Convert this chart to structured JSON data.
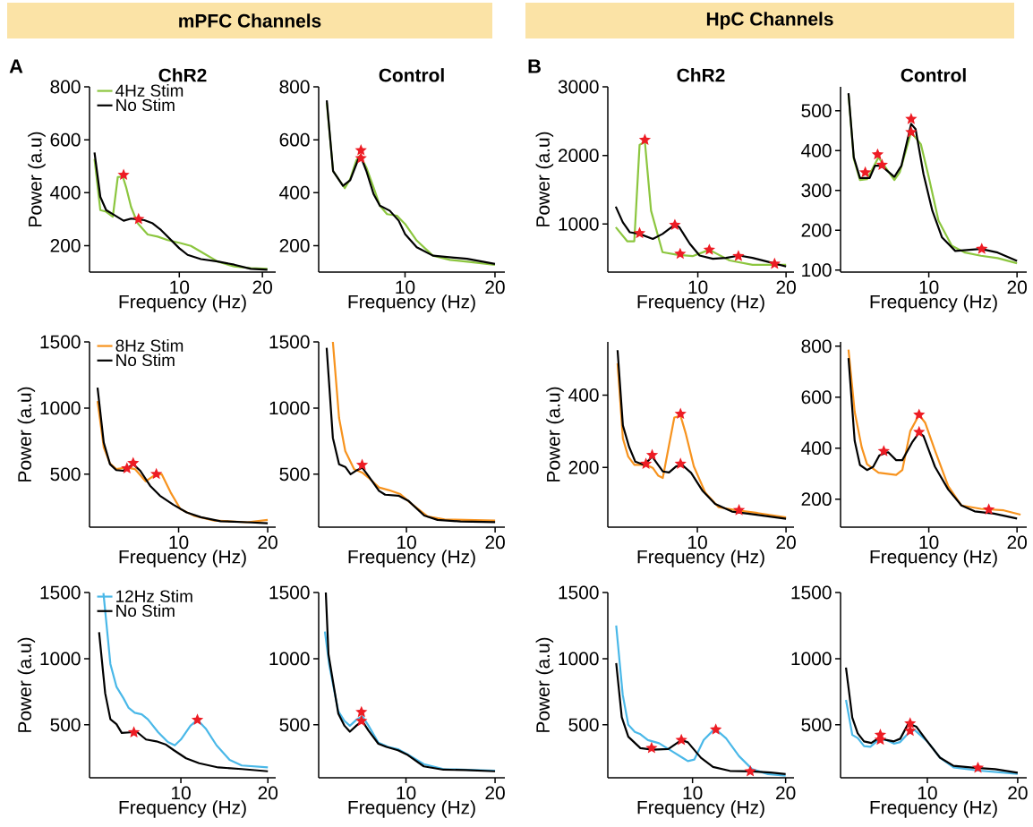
{
  "chart_data": [
    {
      "type": "line",
      "title": "ChR2",
      "xlabel": "Frequency (Hz)",
      "ylabel": "Power (a.u)",
      "xlim": [
        -0.8,
        21.6
      ],
      "ylim": [
        100,
        800
      ],
      "xticks": [
        10,
        20
      ],
      "yticks": [
        200,
        400,
        600,
        800
      ],
      "legend": "top left",
      "annotations": [
        "mPFC Channels",
        "A"
      ],
      "series": [
        {
          "name": "4Hz Stim",
          "color": "#8cc63f",
          "x": [
            -0.2,
            0.5,
            1.2,
            2,
            2.6,
            3.2,
            3.6,
            4.2,
            5,
            6.2,
            7.4,
            8.6,
            10.2,
            11.4,
            12.6,
            14.6,
            16.6,
            18.6,
            20.6
          ],
          "values": [
            527,
            334,
            328,
            309,
            459,
            461,
            421,
            346,
            284,
            242,
            234,
            221,
            209,
            199,
            177,
            140,
            121,
            115,
            112
          ]
        },
        {
          "name": "No Stim",
          "color": "#000000",
          "x": [
            -0.2,
            0.5,
            1.2,
            2.2,
            3.3,
            4.2,
            5.8,
            6.8,
            7.8,
            10,
            11,
            12.6,
            14.6,
            16.6,
            18.6,
            20.6
          ],
          "values": [
            552,
            384,
            334,
            315,
            294,
            302,
            296,
            284,
            259,
            190,
            165,
            149,
            140,
            128,
            112,
            109
          ]
        },
        {
          "type": "scatter",
          "marker": "star",
          "color": "#ed1c24",
          "x": [
            3.3,
            5.1
          ],
          "values": [
            467,
            300
          ]
        }
      ]
    },
    {
      "type": "line",
      "title": "Control",
      "xlabel": "Frequency (Hz)",
      "xlim": [
        0.4,
        21.1
      ],
      "ylim": [
        100,
        800
      ],
      "xticks": [
        10,
        20
      ],
      "yticks": [
        200,
        400,
        600,
        800
      ],
      "series": [
        {
          "color": "#8cc63f",
          "x": [
            1.3,
            2,
            3.3,
            3.9,
            4.6,
            5,
            5.7,
            6.5,
            7.2,
            8,
            9.1,
            10,
            11.3,
            13.1,
            15,
            17.6,
            20
          ],
          "values": [
            740,
            482,
            417,
            451,
            523,
            541,
            495,
            420,
            351,
            319,
            313,
            282,
            219,
            162,
            146,
            137,
            127
          ]
        },
        {
          "color": "#000000",
          "x": [
            1.3,
            2,
            3.1,
            3.9,
            4.8,
            5.2,
            5.7,
            6.5,
            7.2,
            8.3,
            9.3,
            10,
            11.3,
            13.1,
            16.9,
            20
          ],
          "values": [
            749,
            482,
            426,
            447,
            526,
            526,
            482,
            395,
            351,
            332,
            294,
            244,
            194,
            162,
            150,
            131
          ]
        },
        {
          "type": "scatter",
          "marker": "star",
          "color": "#ed1c24",
          "x": [
            5.1,
            5.1
          ],
          "values": [
            560,
            530
          ]
        }
      ]
    },
    {
      "type": "line",
      "title": "ChR2",
      "xlabel": "Frequency (Hz)",
      "ylabel": "Power (a.u)",
      "xlim": [
        -0.2,
        20.9
      ],
      "ylim": [
        300,
        3000
      ],
      "xticks": [
        10,
        20
      ],
      "yticks": [
        1000,
        2000,
        3000
      ],
      "annotations": [
        "HpC Channels",
        "B"
      ],
      "series": [
        {
          "color": "#8cc63f",
          "x": [
            0.7,
            2,
            2.8,
            3.4,
            4,
            4.7,
            6,
            7.5,
            9.4,
            11.3,
            13.6,
            16.2,
            18.1,
            20
          ],
          "values": [
            953,
            749,
            749,
            2153,
            2201,
            1195,
            590,
            556,
            532,
            624,
            469,
            406,
            406,
            406
          ]
        },
        {
          "color": "#000000",
          "x": [
            0.7,
            1.5,
            2.3,
            3.4,
            4.9,
            6,
            7.4,
            7.9,
            9.1,
            10.2,
            11.7,
            13.2,
            14.7,
            16.2,
            18.1,
            20
          ],
          "values": [
            1253,
            1025,
            880,
            856,
            783,
            856,
            991,
            953,
            711,
            541,
            493,
            507,
            541,
            507,
            444,
            382
          ]
        },
        {
          "type": "scatter",
          "marker": "star",
          "color": "#ed1c24",
          "x": [
            4,
            3.4,
            7.4,
            8,
            11.3,
            14.6,
            18.7
          ],
          "values": [
            2226,
            866,
            986,
            565,
            624,
            532,
            420
          ]
        }
      ]
    },
    {
      "type": "line",
      "title": "Control",
      "xlabel": "Frequency (Hz)",
      "xlim": [
        0,
        21.1
      ],
      "ylim": [
        95,
        560
      ],
      "xticks": [
        10,
        20
      ],
      "yticks": [
        100,
        200,
        300,
        400,
        500
      ],
      "series": [
        {
          "color": "#8cc63f",
          "x": [
            0.9,
            1.5,
            2.2,
            3,
            4.3,
            6.1,
            6.7,
            8,
            9.1,
            10,
            11.1,
            12.6,
            14.1,
            15.9,
            17.8,
            20
          ],
          "values": [
            542,
            379,
            326,
            328,
            383,
            326,
            345,
            446,
            416,
            333,
            224,
            161,
            144,
            136,
            130,
            117
          ]
        },
        {
          "color": "#000000",
          "x": [
            0.9,
            1.5,
            2.2,
            3.3,
            3.9,
            4.6,
            6.1,
            6.9,
            8,
            8.5,
            9.4,
            10.4,
            11.5,
            13,
            15.9,
            17.8,
            20
          ],
          "values": [
            544,
            383,
            331,
            331,
            362,
            362,
            334,
            362,
            467,
            454,
            341,
            249,
            182,
            148,
            153,
            144,
            123
          ]
        },
        {
          "type": "scatter",
          "marker": "star",
          "color": "#ed1c24",
          "x": [
            2.8,
            4.2,
            4.7,
            8,
            8,
            16
          ],
          "values": [
            345,
            390,
            364,
            479,
            446,
            153
          ]
        }
      ]
    },
    {
      "type": "line",
      "xlabel": "Frequency (Hz)",
      "ylabel": "Power (a.u)",
      "xlim": [
        0,
        20.9
      ],
      "ylim": [
        100,
        1500
      ],
      "xticks": [
        10,
        20
      ],
      "yticks": [
        500,
        1000,
        1500
      ],
      "legend": "top left",
      "series": [
        {
          "name": "8Hz Stim",
          "color": "#f7931e",
          "x": [
            0.9,
            1.6,
            2.3,
            3,
            4.2,
            5.1,
            6.3,
            7.2,
            8.1,
            9.1,
            10.2,
            11.7,
            14,
            17.7,
            20
          ],
          "values": [
            1053,
            702,
            581,
            539,
            551,
            539,
            446,
            488,
            501,
            363,
            237,
            187,
            150,
            137,
            155
          ]
        },
        {
          "name": "No Stim",
          "color": "#000000",
          "x": [
            0.9,
            1.6,
            2.3,
            3,
            3.8,
            4.9,
            5.7,
            6.8,
            7.9,
            9.4,
            10.9,
            12.5,
            14.7,
            17.7,
            20
          ],
          "values": [
            1154,
            739,
            576,
            531,
            526,
            576,
            526,
            413,
            338,
            270,
            212,
            175,
            145,
            137,
            130
          ]
        },
        {
          "type": "scatter",
          "marker": "star",
          "color": "#ed1c24",
          "x": [
            4.2,
            4.9,
            7.5
          ],
          "values": [
            544,
            584,
            501
          ]
        }
      ]
    },
    {
      "type": "line",
      "xlabel": "Frequency (Hz)",
      "xlim": [
        0.1,
        21.1
      ],
      "ylim": [
        100,
        1500
      ],
      "xticks": [
        10,
        20
      ],
      "yticks": [
        500,
        1000,
        1500
      ],
      "series": [
        {
          "color": "#f7931e",
          "x": [
            1.7,
            2.4,
            3.1,
            4.1,
            5,
            5.7,
            6.9,
            8,
            9.3,
            10.6,
            12.4,
            14.3,
            20
          ],
          "values": [
            1500,
            925,
            675,
            538,
            513,
            475,
            400,
            380,
            350,
            275,
            180,
            158,
            150
          ]
        },
        {
          "color": "#000000",
          "x": [
            1,
            1.7,
            2.4,
            3.1,
            3.7,
            4.4,
            5,
            5.7,
            6.9,
            7.6,
            9.1,
            10.2,
            12,
            13.5,
            16.1,
            20
          ],
          "values": [
            1455,
            775,
            575,
            555,
            500,
            530,
            550,
            488,
            375,
            345,
            338,
            300,
            188,
            155,
            143,
            138
          ]
        },
        {
          "type": "scatter",
          "marker": "star",
          "color": "#ed1c24",
          "x": [
            5
          ],
          "values": [
            570
          ]
        }
      ]
    },
    {
      "type": "line",
      "xlabel": "Frequency (Hz)",
      "ylabel": "Power (a.u)",
      "xlim": [
        -0.1,
        20.9
      ],
      "ylim": [
        35,
        547
      ],
      "xticks": [
        10,
        20
      ],
      "yticks": [
        200,
        400
      ],
      "series": [
        {
          "color": "#f7931e",
          "x": [
            1,
            1.6,
            2.2,
            2.9,
            4.3,
            5,
            5.6,
            6.1,
            7.4,
            8.1,
            8.7,
            9.6,
            10.9,
            12.4,
            14.6,
            16.8,
            20
          ],
          "values": [
            488,
            280,
            230,
            207,
            207,
            198,
            177,
            171,
            338,
            343,
            293,
            203,
            130,
            90,
            81,
            74,
            62
          ]
        },
        {
          "color": "#000000",
          "x": [
            1,
            1.6,
            2.3,
            3,
            4,
            4.9,
            6.1,
            6.8,
            7.6,
            8.3,
            9.3,
            10.6,
            12,
            13.9,
            16.1,
            20
          ],
          "values": [
            524,
            316,
            257,
            216,
            207,
            230,
            189,
            186,
            203,
            207,
            185,
            135,
            99,
            78,
            71,
            58
          ]
        },
        {
          "type": "scatter",
          "marker": "star",
          "color": "#ed1c24",
          "x": [
            4.2,
            4.9,
            8.1,
            8.1,
            14.7
          ],
          "values": [
            210,
            234,
            348,
            210,
            82
          ]
        }
      ]
    },
    {
      "type": "line",
      "xlabel": "Frequency (Hz)",
      "xlim": [
        0,
        21.1
      ],
      "ylim": [
        90,
        817
      ],
      "xticks": [
        10,
        20
      ],
      "yticks": [
        200,
        400,
        600,
        800
      ],
      "series": [
        {
          "color": "#f7931e",
          "x": [
            0.9,
            1.6,
            2.4,
            3,
            4.3,
            6.3,
            7,
            7.9,
            8.9,
            9.6,
            10.7,
            12.2,
            13.7,
            15.9,
            18.5,
            20.4
          ],
          "values": [
            787,
            543,
            403,
            337,
            304,
            295,
            314,
            467,
            531,
            499,
            391,
            251,
            175,
            162,
            156,
            139
          ]
        },
        {
          "color": "#000000",
          "x": [
            0.9,
            1.6,
            2.2,
            3,
            3.7,
            4.4,
            5.4,
            6.3,
            7,
            8.1,
            8.9,
            9.4,
            10.7,
            12.2,
            13.7,
            15.2,
            17.4,
            20
          ],
          "values": [
            753,
            429,
            334,
            314,
            327,
            372,
            384,
            353,
            353,
            422,
            461,
            448,
            327,
            238,
            175,
            152,
            143,
            124
          ]
        },
        {
          "type": "scatter",
          "marker": "star",
          "color": "#ed1c24",
          "x": [
            4.9,
            8.9,
            8.9,
            16.8
          ],
          "values": [
            388,
            531,
            463,
            159
          ]
        }
      ]
    },
    {
      "type": "line",
      "xlabel": "Frequency (Hz)",
      "ylabel": "Power (a.u)",
      "xlim": [
        -0.5,
        20.9
      ],
      "ylim": [
        100,
        1500
      ],
      "xticks": [
        10,
        20
      ],
      "yticks": [
        500,
        1000,
        1500
      ],
      "legend": "top left",
      "series": [
        {
          "name": "12Hz Stim",
          "color": "#4ab8e8",
          "x": [
            1.1,
            1.9,
            2.6,
            3.4,
            4,
            4.7,
            5.5,
            6.2,
            7.4,
            8.5,
            9.3,
            10,
            11.1,
            11.9,
            12.9,
            14.1,
            15.6,
            17,
            20
          ],
          "values": [
            1495,
            959,
            787,
            701,
            628,
            591,
            579,
            542,
            443,
            370,
            345,
            389,
            493,
            537,
            468,
            345,
            235,
            193,
            178
          ]
        },
        {
          "name": "No Stim",
          "color": "#000000",
          "x": [
            0.6,
            1.3,
            1.9,
            2.6,
            3.2,
            4.2,
            5,
            6,
            7.2,
            8.3,
            9.2,
            10.6,
            12.1,
            14.3,
            17,
            20
          ],
          "values": [
            1200,
            738,
            542,
            505,
            439,
            443,
            443,
            389,
            375,
            350,
            308,
            247,
            210,
            178,
            166,
            149
          ]
        },
        {
          "type": "scatter",
          "marker": "star",
          "color": "#ed1c24",
          "x": [
            4.6,
            11.9
          ],
          "values": [
            443,
            537
          ]
        }
      ]
    },
    {
      "type": "line",
      "xlabel": "Frequency (Hz)",
      "xlim": [
        0.2,
        21.1
      ],
      "ylim": [
        100,
        1500
      ],
      "xticks": [
        10,
        20
      ],
      "yticks": [
        500,
        1000,
        1500
      ],
      "series": [
        {
          "color": "#4ab8e8",
          "x": [
            0.9,
            1.4,
            2.4,
            3.1,
            3.7,
            4.5,
            5.1,
            5.8,
            6.9,
            8,
            9.1,
            10.2,
            12,
            14.2,
            20
          ],
          "values": [
            1205,
            947,
            603,
            529,
            493,
            542,
            566,
            493,
            365,
            333,
            316,
            276,
            203,
            166,
            154
          ]
        },
        {
          "color": "#000000",
          "x": [
            1,
            1.3,
            2.4,
            3.1,
            3.7,
            4.5,
            5.1,
            5.8,
            6.9,
            7.8,
            9.1,
            10.2,
            12,
            14.2,
            16.7,
            20
          ],
          "values": [
            1500,
            1033,
            586,
            493,
            448,
            498,
            529,
            456,
            357,
            333,
            308,
            272,
            186,
            161,
            158,
            149
          ]
        },
        {
          "type": "scatter",
          "marker": "star",
          "color": "#ed1c24",
          "x": [
            5,
            5
          ],
          "values": [
            596,
            529
          ]
        }
      ]
    },
    {
      "type": "line",
      "xlabel": "Frequency (Hz)",
      "ylabel": "Power (a.u)",
      "xlim": [
        0.9,
        20.9
      ],
      "ylim": [
        100,
        1500
      ],
      "xticks": [
        10,
        20
      ],
      "yticks": [
        500,
        1000,
        1500
      ],
      "series": [
        {
          "color": "#4ab8e8",
          "x": [
            1.8,
            2.5,
            3.1,
            3.8,
            4.4,
            5.2,
            6.4,
            7.8,
            9.5,
            10.2,
            11.2,
            12.4,
            13.6,
            15,
            16.4,
            18.1,
            20
          ],
          "values": [
            1250,
            728,
            500,
            446,
            429,
            385,
            361,
            300,
            226,
            238,
            385,
            471,
            398,
            263,
            165,
            128,
            116
          ]
        },
        {
          "color": "#000000",
          "x": [
            1.8,
            2.4,
            3.1,
            4.4,
            5.7,
            7.4,
            8.8,
            9.5,
            10.9,
            12.2,
            14,
            16.4,
            18.4,
            20
          ],
          "values": [
            966,
            557,
            410,
            324,
            312,
            317,
            385,
            368,
            251,
            182,
            152,
            148,
            140,
            128
          ]
        },
        {
          "type": "scatter",
          "marker": "star",
          "color": "#ed1c24",
          "x": [
            5.6,
            8.8,
            12.5,
            16.2
          ],
          "values": [
            324,
            385,
            464,
            148
          ]
        }
      ]
    },
    {
      "type": "line",
      "xlabel": "Frequency (Hz)",
      "xlim": [
        0.4,
        21
      ],
      "ylim": [
        100,
        1500
      ],
      "xticks": [
        10,
        20
      ],
      "yticks": [
        500,
        1000,
        1500
      ],
      "series": [
        {
          "color": "#4ab8e8",
          "x": [
            1,
            1.7,
            2.3,
            3,
            3.7,
            4.6,
            5.4,
            6.3,
            7,
            7.9,
            8.6,
            10,
            11.4,
            12.9,
            15.7,
            20
          ],
          "values": [
            688,
            424,
            400,
            339,
            334,
            387,
            387,
            358,
            370,
            436,
            461,
            375,
            252,
            178,
            154,
            130
          ]
        },
        {
          "color": "#000000",
          "x": [
            1,
            1.7,
            2.3,
            3,
            3.8,
            4.6,
            5.4,
            6.3,
            7,
            7.9,
            8.8,
            10,
            11.4,
            12.9,
            15,
            17.5,
            20
          ],
          "values": [
            933,
            554,
            436,
            375,
            363,
            399,
            387,
            375,
            395,
            510,
            485,
            375,
            252,
            190,
            177,
            165,
            138
          ]
        },
        {
          "type": "scatter",
          "marker": "star",
          "color": "#ed1c24",
          "x": [
            4.8,
            4.8,
            8.1,
            8.1,
            15.6
          ],
          "values": [
            424,
            387,
            510,
            454,
            175
          ]
        }
      ]
    }
  ]
}
